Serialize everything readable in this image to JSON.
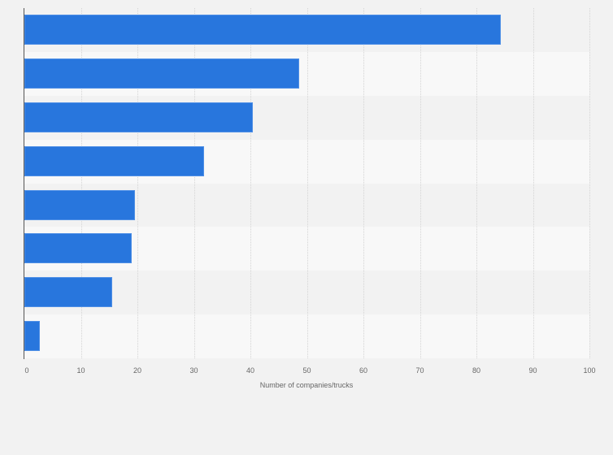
{
  "chart_data": {
    "type": "bar",
    "orientation": "horizontal",
    "title": "",
    "xlabel": "Number of companies/trucks",
    "ylabel": "",
    "categories": [
      "",
      "",
      "",
      "",
      "",
      "",
      "",
      ""
    ],
    "values": [
      84.3,
      48.7,
      40.5,
      31.8,
      19.6,
      19.0,
      15.5,
      2.7
    ],
    "xlim": [
      0,
      100
    ],
    "x_ticks": [
      "0",
      "10",
      "20",
      "30",
      "40",
      "50",
      "60",
      "70",
      "80",
      "90",
      "100"
    ],
    "grid": true,
    "legend": null,
    "bar_color": "#2876dd"
  },
  "axis": {
    "xlabel": "Number of companies/trucks",
    "ticks": [
      "0",
      "10",
      "20",
      "30",
      "40",
      "50",
      "60",
      "70",
      "80",
      "90",
      "100"
    ]
  }
}
